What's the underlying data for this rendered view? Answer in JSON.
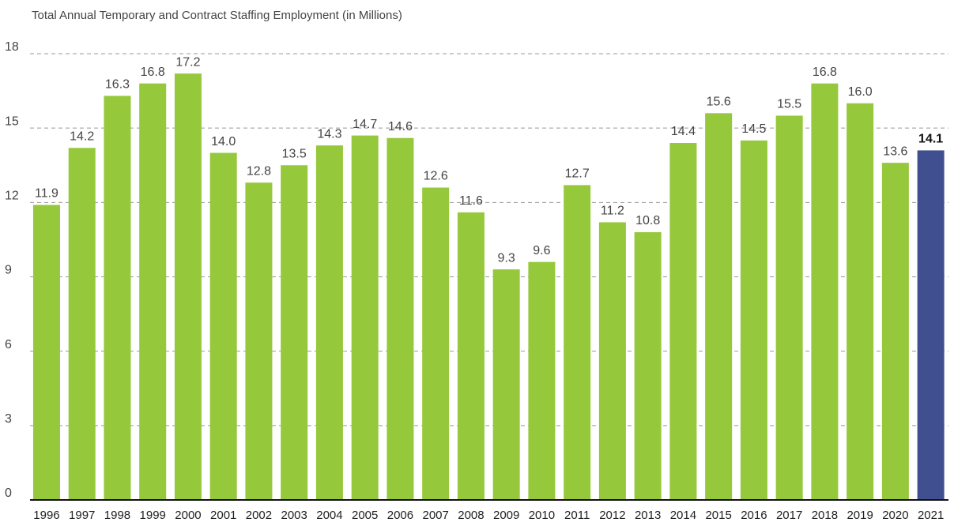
{
  "chart_data": {
    "type": "bar",
    "title": "Total Annual Temporary and Contract Staffing Employment (in Millions)",
    "categories": [
      "1996",
      "1997",
      "1998",
      "1999",
      "2000",
      "2001",
      "2002",
      "2003",
      "2004",
      "2005",
      "2006",
      "2007",
      "2008",
      "2009",
      "2010",
      "2011",
      "2012",
      "2013",
      "2014",
      "2015",
      "2016",
      "2017",
      "2018",
      "2019",
      "2020",
      "2021"
    ],
    "values": [
      11.9,
      14.2,
      16.3,
      16.8,
      17.2,
      14.0,
      12.8,
      13.5,
      14.3,
      14.7,
      14.6,
      12.6,
      11.6,
      9.3,
      9.6,
      12.7,
      11.2,
      10.8,
      14.4,
      15.6,
      14.5,
      15.5,
      16.8,
      16.0,
      13.6,
      14.1
    ],
    "value_labels": [
      "11.9",
      "14.2",
      "16.3",
      "16.8",
      "17.2",
      "14.0",
      "12.8",
      "13.5",
      "14.3",
      "14.7",
      "14.6",
      "12.6",
      "11.6",
      "9.3",
      "9.6",
      "12.7",
      "11.2",
      "10.8",
      "14.4",
      "15.6",
      "14.5",
      "15.5",
      "16.8",
      "16.0",
      "13.6",
      "14.1"
    ],
    "colors": [
      "#96c83c",
      "#96c83c",
      "#96c83c",
      "#96c83c",
      "#96c83c",
      "#96c83c",
      "#96c83c",
      "#96c83c",
      "#96c83c",
      "#96c83c",
      "#96c83c",
      "#96c83c",
      "#96c83c",
      "#96c83c",
      "#96c83c",
      "#96c83c",
      "#96c83c",
      "#96c83c",
      "#96c83c",
      "#96c83c",
      "#96c83c",
      "#96c83c",
      "#96c83c",
      "#96c83c",
      "#96c83c",
      "#3f4f8f"
    ],
    "ylim": [
      0,
      18
    ],
    "yticks": [
      0,
      3,
      6,
      9,
      12,
      15,
      18
    ],
    "grid": true
  }
}
